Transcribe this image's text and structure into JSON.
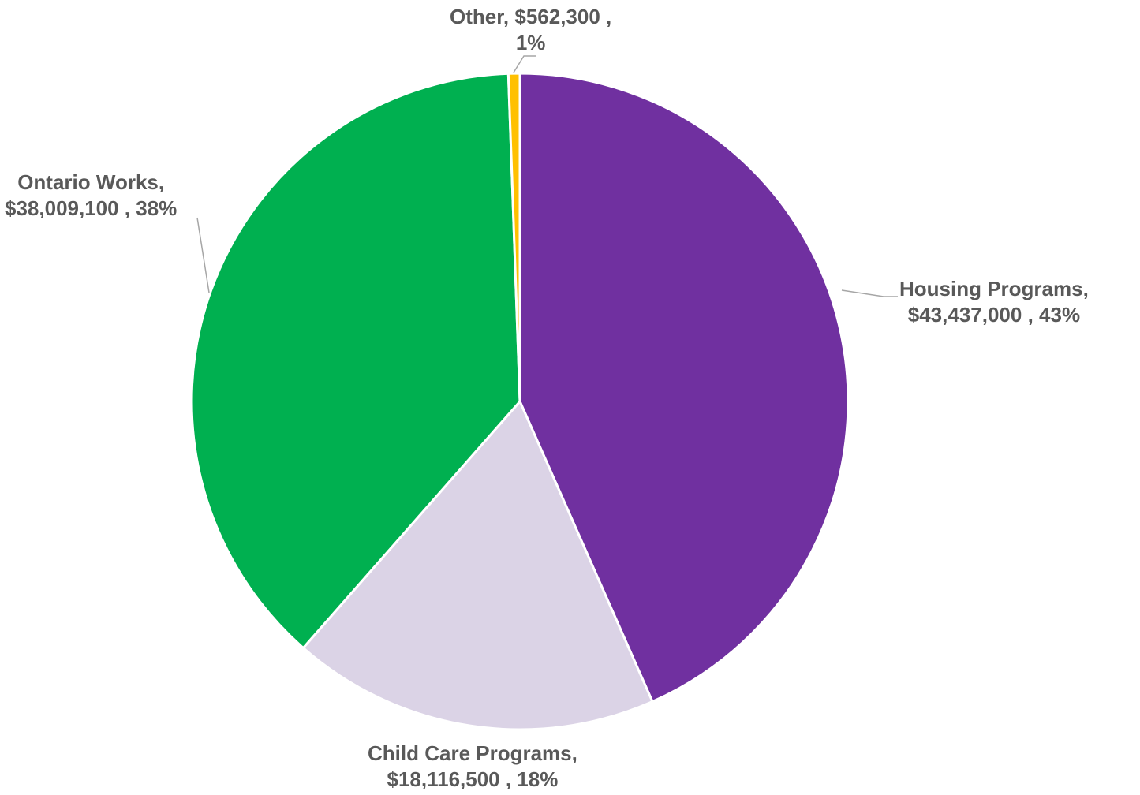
{
  "chart_data": {
    "type": "pie",
    "title": "",
    "slices": [
      {
        "name": "Housing Programs",
        "value": 43437000,
        "value_label": "$43,437,000",
        "percent_label": "43%",
        "color": "#7030A0"
      },
      {
        "name": "Child Care Programs",
        "value": 18116500,
        "value_label": "$18,116,500",
        "percent_label": "18%",
        "color": "#DBD3E6"
      },
      {
        "name": "Ontario Works",
        "value": 38009100,
        "value_label": "$38,009,100",
        "percent_label": "38%",
        "color": "#00B050"
      },
      {
        "name": "Other",
        "value": 562300,
        "value_label": "$562,300",
        "percent_label": "1%",
        "color": "#FFC000"
      }
    ],
    "start_angle": "12 o'clock",
    "direction": "clockwise",
    "legend": "none",
    "data_labels": "outside with leader lines"
  },
  "labels": {
    "housing": {
      "line1": "Housing Programs,",
      "line2": "$43,437,000 , 43%"
    },
    "childcare": {
      "line1": "Child Care Programs,",
      "line2": "$18,116,500 , 18%"
    },
    "ontario": {
      "line1": "Ontario Works,",
      "line2": "$38,009,100 , 38%"
    },
    "other": {
      "line1": "Other,  $562,300 ,",
      "line2": "1%"
    }
  }
}
